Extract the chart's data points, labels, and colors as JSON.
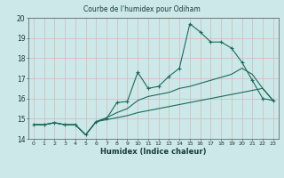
{
  "title": "Courbe de l'humidex pour Odiham",
  "xlabel": "Humidex (Indice chaleur)",
  "bg_color": "#cce8e8",
  "grid_color": "#aacccc",
  "line_color": "#1a6b5a",
  "xlim": [
    -0.5,
    23.5
  ],
  "ylim": [
    14.0,
    20.0
  ],
  "xticks": [
    0,
    1,
    2,
    3,
    4,
    5,
    6,
    7,
    8,
    9,
    10,
    11,
    12,
    13,
    14,
    15,
    16,
    17,
    18,
    19,
    20,
    21,
    22,
    23
  ],
  "yticks": [
    14,
    15,
    16,
    17,
    18,
    19,
    20
  ],
  "main_series": [
    14.7,
    14.7,
    14.8,
    14.7,
    14.7,
    14.2,
    14.85,
    15.0,
    15.8,
    15.85,
    17.3,
    16.5,
    16.6,
    17.1,
    17.5,
    19.7,
    19.3,
    18.8,
    18.8,
    18.5,
    17.8,
    16.9,
    16.0,
    15.9
  ],
  "line2_series": [
    14.7,
    14.7,
    14.8,
    14.7,
    14.7,
    14.2,
    14.85,
    15.05,
    15.3,
    15.5,
    15.9,
    16.1,
    16.2,
    16.3,
    16.5,
    16.6,
    16.75,
    16.9,
    17.05,
    17.2,
    17.5,
    17.2,
    16.5,
    15.9
  ],
  "line3_series": [
    14.7,
    14.7,
    14.8,
    14.7,
    14.7,
    14.2,
    14.85,
    14.95,
    15.05,
    15.15,
    15.3,
    15.4,
    15.5,
    15.6,
    15.7,
    15.8,
    15.9,
    16.0,
    16.1,
    16.2,
    16.3,
    16.4,
    16.5,
    15.9
  ]
}
